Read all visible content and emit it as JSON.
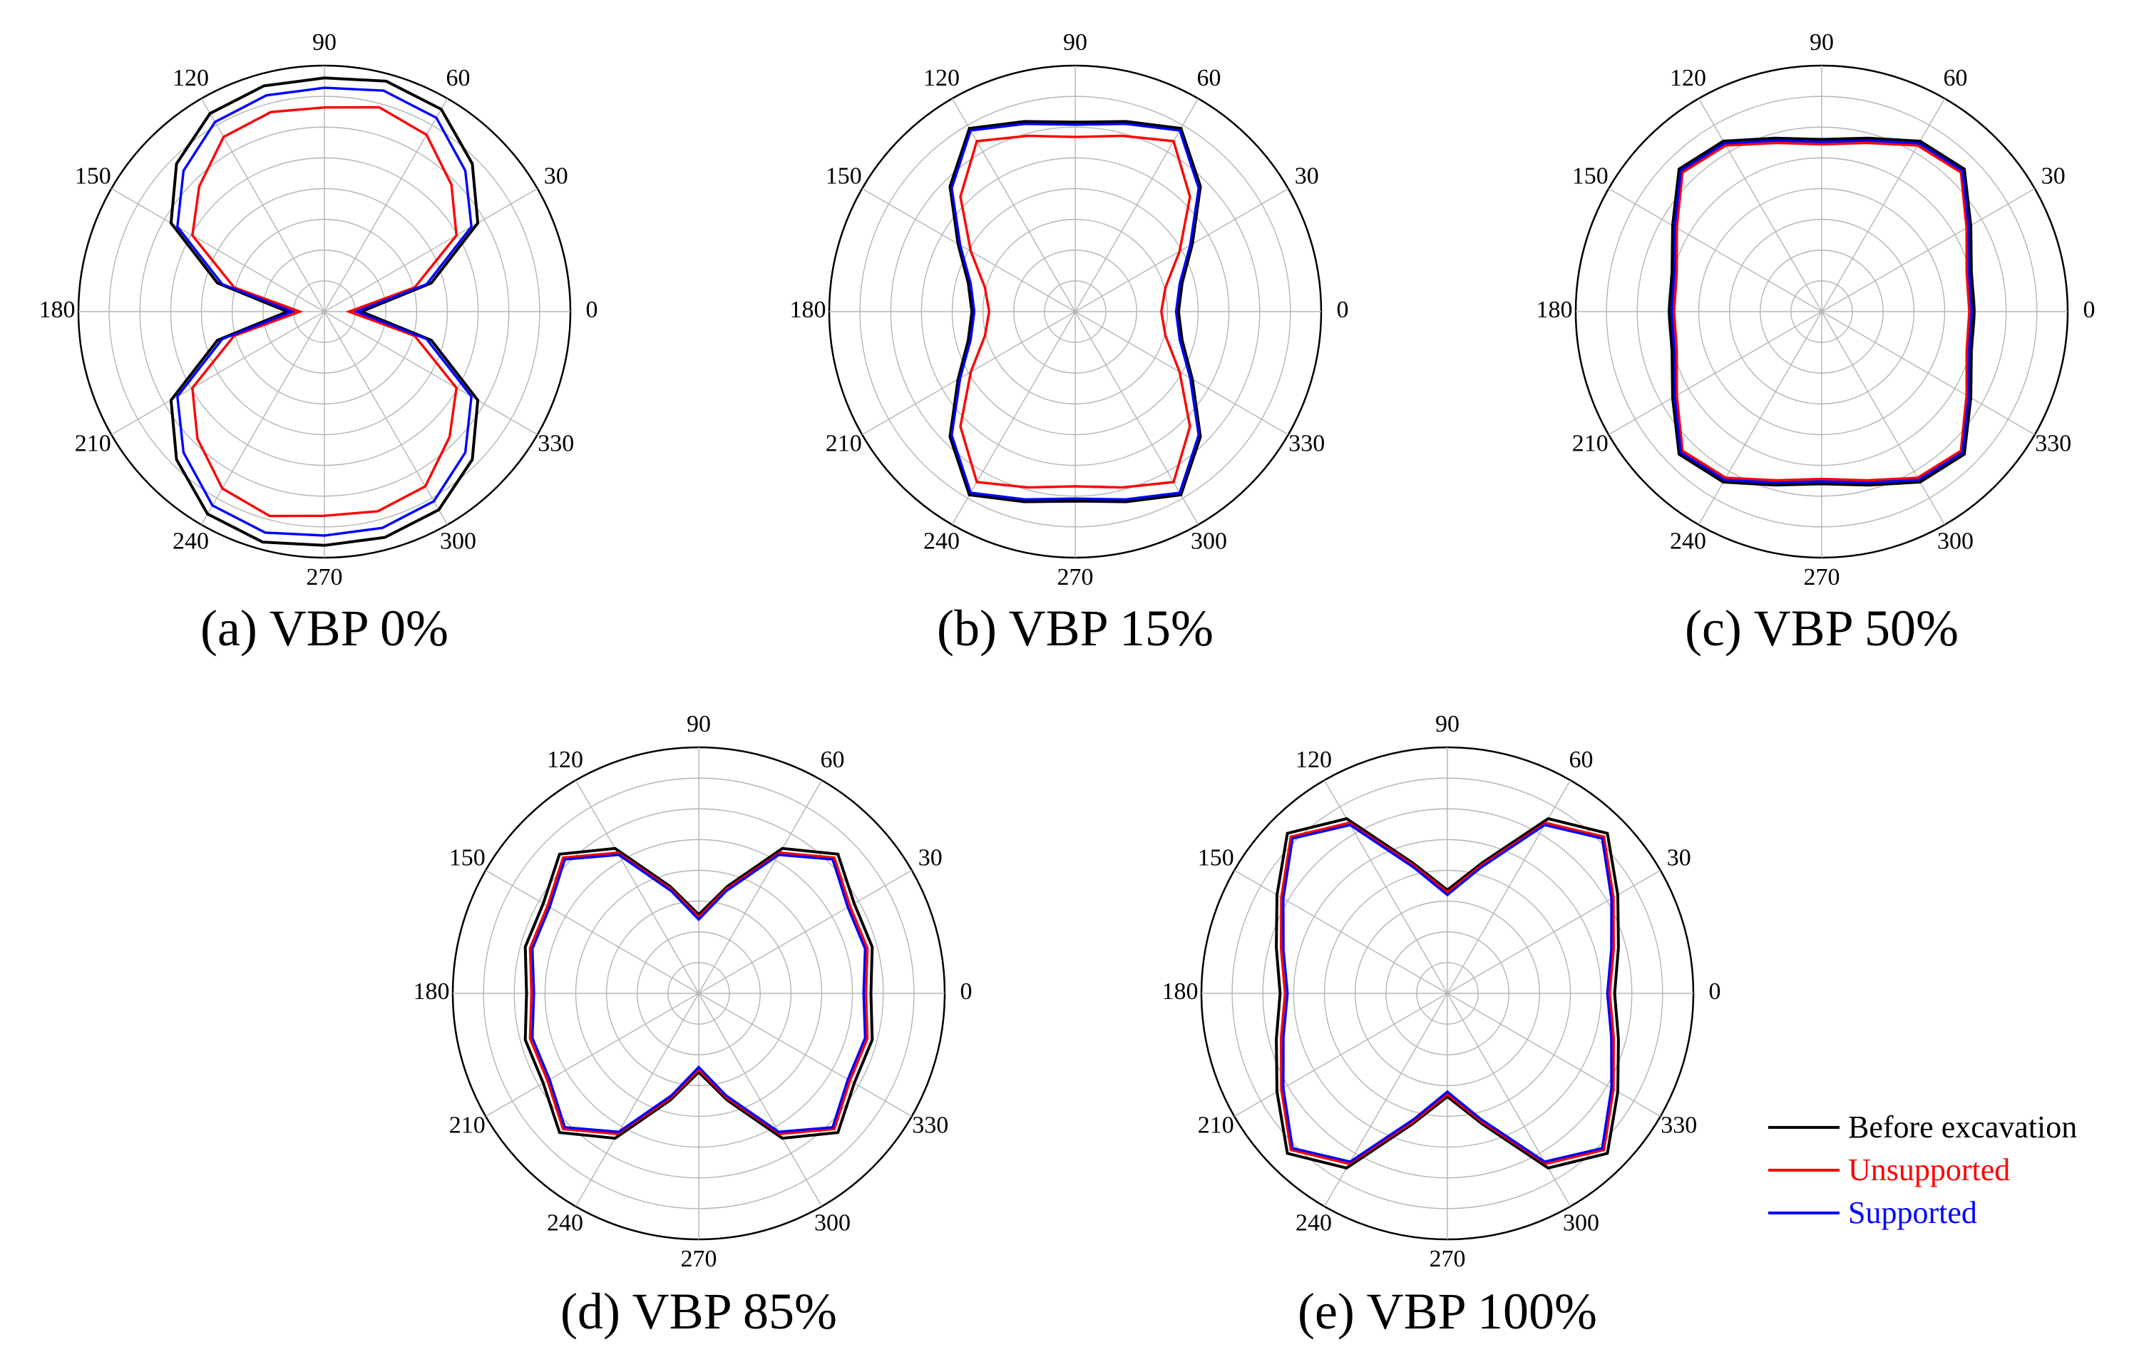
{
  "chart_data": {
    "type": "polar",
    "angle_ticks": [
      0,
      30,
      60,
      90,
      120,
      150,
      180,
      210,
      240,
      270,
      300,
      330
    ],
    "rings": 8,
    "r_max": 1.0,
    "series_styles": [
      {
        "name": "Before excavation",
        "color": "#000000"
      },
      {
        "name": "Unsupported",
        "color": "#ff0000"
      },
      {
        "name": "Supported",
        "color": "#0000ff"
      }
    ],
    "legend": {
      "position": "bottom-right",
      "entries": [
        {
          "label": "Before excavation",
          "color": "#000000"
        },
        {
          "label": "Unsupported",
          "color": "#ff0000"
        },
        {
          "label": "Supported",
          "color": "#0000ff"
        }
      ]
    },
    "panels": [
      {
        "title": "(a) VBP 0%",
        "angles_deg": [
          0,
          15,
          30,
          45,
          60,
          75,
          90,
          105,
          120,
          135,
          150,
          165,
          180,
          195,
          210,
          225,
          240,
          255,
          270,
          285,
          300,
          315,
          330,
          345
        ],
        "series": [
          {
            "name": "Before excavation",
            "values": [
              0.15,
              0.45,
              0.72,
              0.85,
              0.95,
              0.97,
              0.95,
              0.95,
              0.93,
              0.85,
              0.72,
              0.45,
              0.15,
              0.45,
              0.72,
              0.85,
              0.95,
              0.97,
              0.95,
              0.95,
              0.93,
              0.85,
              0.72,
              0.45
            ]
          },
          {
            "name": "Unsupported",
            "values": [
              0.1,
              0.38,
              0.62,
              0.73,
              0.83,
              0.86,
              0.83,
              0.84,
              0.82,
              0.72,
              0.62,
              0.38,
              0.1,
              0.38,
              0.62,
              0.73,
              0.83,
              0.86,
              0.83,
              0.84,
              0.82,
              0.72,
              0.62,
              0.38
            ]
          },
          {
            "name": "Supported",
            "values": [
              0.13,
              0.43,
              0.69,
              0.81,
              0.91,
              0.93,
              0.91,
              0.91,
              0.89,
              0.81,
              0.69,
              0.43,
              0.13,
              0.43,
              0.69,
              0.81,
              0.91,
              0.93,
              0.91,
              0.91,
              0.89,
              0.81,
              0.69,
              0.43
            ]
          }
        ]
      },
      {
        "title": "(b) VBP 15%",
        "angles_deg": [
          0,
          15,
          30,
          45,
          60,
          75,
          90,
          105,
          120,
          135,
          150,
          165,
          180,
          195,
          210,
          225,
          240,
          255,
          270,
          285,
          300,
          315,
          330,
          345
        ],
        "series": [
          {
            "name": "Before excavation",
            "values": [
              0.42,
              0.45,
              0.55,
              0.72,
              0.86,
              0.8,
              0.77,
              0.8,
              0.86,
              0.72,
              0.55,
              0.45,
              0.42,
              0.45,
              0.55,
              0.72,
              0.86,
              0.8,
              0.77,
              0.8,
              0.86,
              0.72,
              0.55,
              0.45
            ]
          },
          {
            "name": "Unsupported",
            "values": [
              0.35,
              0.38,
              0.49,
              0.66,
              0.8,
              0.74,
              0.71,
              0.74,
              0.8,
              0.66,
              0.49,
              0.38,
              0.35,
              0.38,
              0.49,
              0.66,
              0.8,
              0.74,
              0.71,
              0.74,
              0.8,
              0.66,
              0.49,
              0.38
            ]
          },
          {
            "name": "Supported",
            "values": [
              0.41,
              0.44,
              0.54,
              0.71,
              0.85,
              0.79,
              0.76,
              0.79,
              0.85,
              0.71,
              0.54,
              0.44,
              0.41,
              0.44,
              0.54,
              0.71,
              0.85,
              0.79,
              0.76,
              0.79,
              0.85,
              0.71,
              0.54,
              0.44
            ]
          }
        ]
      },
      {
        "title": "(c) VBP 50%",
        "angles_deg": [
          0,
          15,
          30,
          45,
          60,
          75,
          90,
          105,
          120,
          135,
          150,
          165,
          180,
          195,
          210,
          225,
          240,
          255,
          270,
          285,
          300,
          315,
          330,
          345
        ],
        "series": [
          {
            "name": "Before excavation",
            "values": [
              0.62,
              0.63,
              0.7,
              0.82,
              0.8,
              0.73,
              0.7,
              0.73,
              0.8,
              0.82,
              0.7,
              0.63,
              0.62,
              0.63,
              0.7,
              0.82,
              0.8,
              0.73,
              0.7,
              0.73,
              0.8,
              0.82,
              0.7,
              0.63
            ]
          },
          {
            "name": "Unsupported",
            "values": [
              0.6,
              0.61,
              0.68,
              0.8,
              0.78,
              0.71,
              0.68,
              0.71,
              0.78,
              0.8,
              0.68,
              0.61,
              0.6,
              0.61,
              0.68,
              0.8,
              0.78,
              0.71,
              0.68,
              0.71,
              0.78,
              0.8,
              0.68,
              0.61
            ]
          },
          {
            "name": "Supported",
            "values": [
              0.61,
              0.62,
              0.69,
              0.81,
              0.79,
              0.72,
              0.69,
              0.72,
              0.79,
              0.81,
              0.69,
              0.62,
              0.61,
              0.62,
              0.69,
              0.81,
              0.79,
              0.72,
              0.69,
              0.72,
              0.79,
              0.81,
              0.69,
              0.62
            ]
          }
        ]
      },
      {
        "title": "(d) VBP 85%",
        "angles_deg": [
          0,
          15,
          30,
          45,
          60,
          75,
          90,
          105,
          120,
          135,
          150,
          165,
          180,
          195,
          210,
          225,
          240,
          255,
          270,
          285,
          300,
          315,
          330,
          345
        ],
        "series": [
          {
            "name": "Before excavation",
            "values": [
              0.7,
              0.73,
              0.73,
              0.8,
              0.68,
              0.45,
              0.32,
              0.45,
              0.68,
              0.8,
              0.73,
              0.73,
              0.7,
              0.73,
              0.73,
              0.8,
              0.68,
              0.45,
              0.32,
              0.45,
              0.68,
              0.8,
              0.73,
              0.73
            ]
          },
          {
            "name": "Unsupported",
            "values": [
              0.68,
              0.71,
              0.71,
              0.78,
              0.66,
              0.44,
              0.31,
              0.44,
              0.66,
              0.78,
              0.71,
              0.71,
              0.68,
              0.71,
              0.71,
              0.78,
              0.66,
              0.44,
              0.31,
              0.44,
              0.66,
              0.78,
              0.71,
              0.71
            ]
          },
          {
            "name": "Supported",
            "values": [
              0.67,
              0.7,
              0.7,
              0.77,
              0.65,
              0.43,
              0.3,
              0.43,
              0.65,
              0.77,
              0.7,
              0.7,
              0.67,
              0.7,
              0.7,
              0.77,
              0.65,
              0.43,
              0.3,
              0.43,
              0.65,
              0.77,
              0.7,
              0.7
            ]
          }
        ]
      },
      {
        "title": "(e) VBP 100%",
        "angles_deg": [
          0,
          15,
          30,
          45,
          60,
          75,
          90,
          105,
          120,
          135,
          150,
          165,
          180,
          195,
          210,
          225,
          240,
          255,
          270,
          285,
          300,
          315,
          330,
          345
        ],
        "series": [
          {
            "name": "Before excavation",
            "values": [
              0.68,
              0.72,
              0.8,
              0.92,
              0.82,
              0.55,
              0.42,
              0.55,
              0.82,
              0.92,
              0.8,
              0.72,
              0.68,
              0.72,
              0.8,
              0.92,
              0.82,
              0.55,
              0.42,
              0.55,
              0.82,
              0.92,
              0.8,
              0.72
            ]
          },
          {
            "name": "Unsupported",
            "values": [
              0.66,
              0.7,
              0.78,
              0.9,
              0.8,
              0.54,
              0.41,
              0.54,
              0.8,
              0.9,
              0.78,
              0.7,
              0.66,
              0.7,
              0.78,
              0.9,
              0.8,
              0.54,
              0.41,
              0.54,
              0.8,
              0.9,
              0.78,
              0.7
            ]
          },
          {
            "name": "Supported",
            "values": [
              0.65,
              0.69,
              0.77,
              0.89,
              0.79,
              0.53,
              0.4,
              0.53,
              0.79,
              0.89,
              0.77,
              0.69,
              0.65,
              0.69,
              0.77,
              0.89,
              0.79,
              0.53,
              0.4,
              0.53,
              0.79,
              0.89,
              0.77,
              0.69
            ]
          }
        ]
      }
    ]
  }
}
